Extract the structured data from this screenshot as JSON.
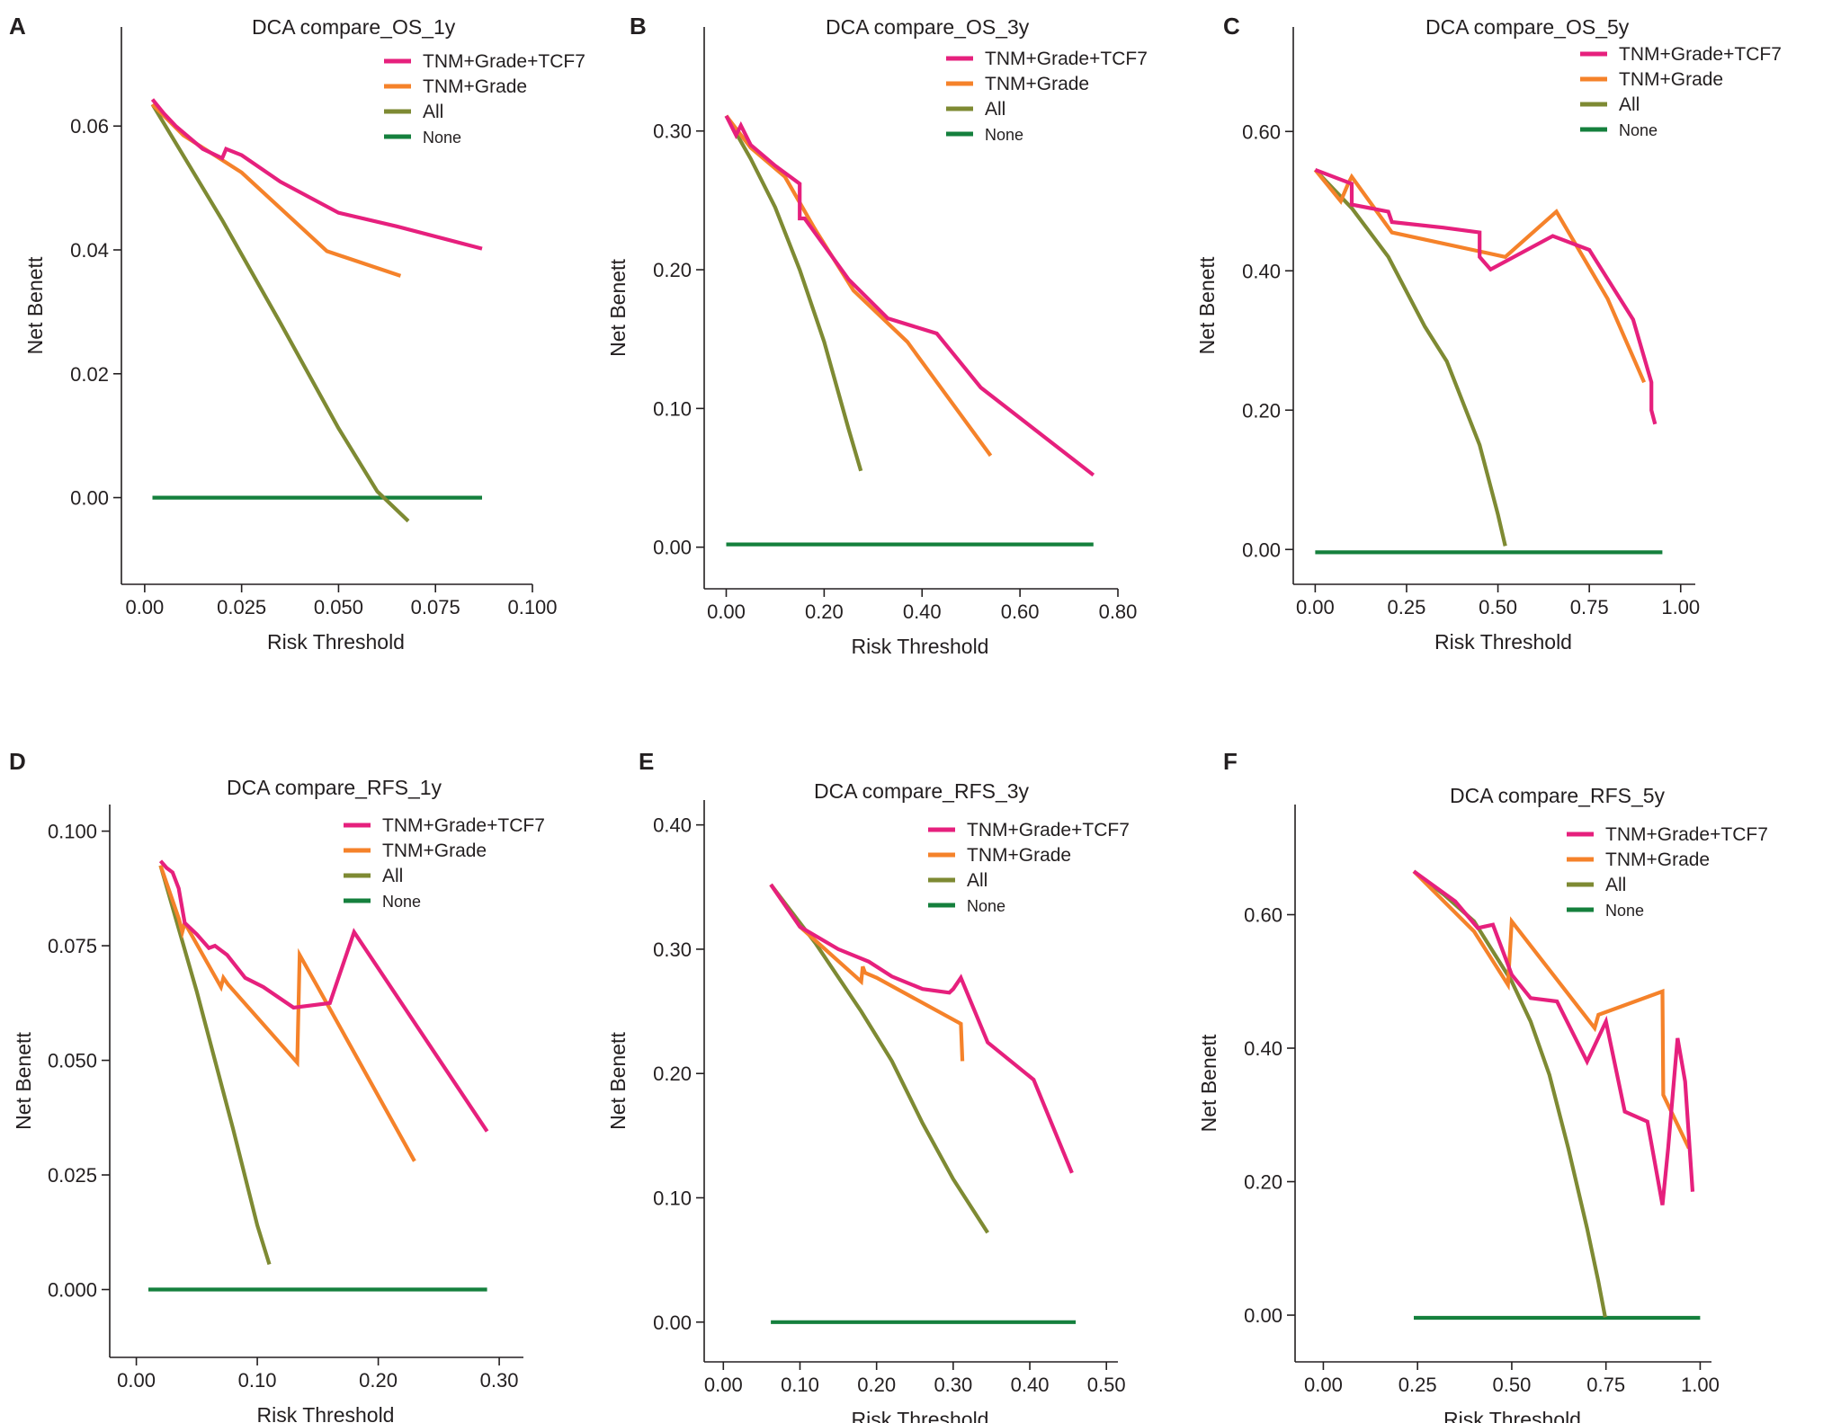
{
  "colors": {
    "TNM+Grade+TCF7": "#e6207d",
    "TNM+Grade": "#f5822a",
    "All": "#7e8a33",
    "None": "#15803d"
  },
  "legend_order": [
    "TNM+Grade+TCF7",
    "TNM+Grade",
    "All",
    "None"
  ],
  "chart_data": [
    {
      "panel": "A",
      "type": "line",
      "title": "DCA compare_OS_1y",
      "xlabel": "Risk Threshold",
      "ylabel": "Net Benett",
      "xlim": [
        -0.006,
        0.1
      ],
      "ylim": [
        -0.014,
        0.076
      ],
      "xticks": [
        0.0,
        0.025,
        0.05,
        0.075,
        0.1
      ],
      "xtick_labels": [
        "0.00",
        "0.025",
        "0.050",
        "0.075",
        "0.100"
      ],
      "yticks": [
        0.0,
        0.02,
        0.04,
        0.06
      ],
      "ytick_labels": [
        "0.00",
        "0.02",
        "0.04",
        "0.06"
      ],
      "series": [
        {
          "name": "TNM+Grade+TCF7",
          "x": [
            0.002,
            0.005,
            0.008,
            0.015,
            0.02,
            0.021,
            0.025,
            0.035,
            0.05,
            0.065,
            0.087
          ],
          "y": [
            0.0643,
            0.062,
            0.06,
            0.0563,
            0.0548,
            0.0563,
            0.0553,
            0.051,
            0.046,
            0.0438,
            0.0402
          ]
        },
        {
          "name": "TNM+Grade",
          "x": [
            0.002,
            0.01,
            0.025,
            0.047,
            0.066
          ],
          "y": [
            0.0635,
            0.0585,
            0.0525,
            0.0398,
            0.0358
          ]
        },
        {
          "name": "All",
          "x": [
            0.002,
            0.01,
            0.02,
            0.035,
            0.05,
            0.06,
            0.068
          ],
          "y": [
            0.0635,
            0.0552,
            0.0448,
            0.0282,
            0.0112,
            0.001,
            -0.0038
          ]
        },
        {
          "name": "None",
          "x": [
            0.002,
            0.087
          ],
          "y": [
            0.0,
            0.0
          ]
        }
      ]
    },
    {
      "panel": "B",
      "type": "line",
      "title": "DCA compare_OS_3y",
      "xlabel": "Risk Threshold",
      "ylabel": "Net Benett",
      "xlim": [
        -0.045,
        0.8
      ],
      "ylim": [
        -0.03,
        0.375
      ],
      "xticks": [
        0.0,
        0.2,
        0.4,
        0.6,
        0.8
      ],
      "xtick_labels": [
        "0.00",
        "0.20",
        "0.40",
        "0.60",
        "0.80"
      ],
      "yticks": [
        0.0,
        0.1,
        0.2,
        0.3
      ],
      "ytick_labels": [
        "0.00",
        "0.10",
        "0.20",
        "0.30"
      ],
      "series": [
        {
          "name": "TNM+Grade+TCF7",
          "x": [
            0.0,
            0.02,
            0.03,
            0.05,
            0.1,
            0.15,
            0.15,
            0.16,
            0.25,
            0.33,
            0.43,
            0.52,
            0.75
          ],
          "y": [
            0.311,
            0.297,
            0.304,
            0.29,
            0.275,
            0.262,
            0.237,
            0.237,
            0.193,
            0.165,
            0.154,
            0.115,
            0.052
          ]
        },
        {
          "name": "TNM+Grade",
          "x": [
            0.0,
            0.05,
            0.12,
            0.18,
            0.26,
            0.37,
            0.54
          ],
          "y": [
            0.311,
            0.288,
            0.267,
            0.23,
            0.185,
            0.148,
            0.066
          ]
        },
        {
          "name": "All",
          "x": [
            0.0,
            0.05,
            0.1,
            0.15,
            0.2,
            0.25,
            0.275
          ],
          "y": [
            0.311,
            0.28,
            0.245,
            0.2,
            0.148,
            0.085,
            0.055
          ]
        },
        {
          "name": "None",
          "x": [
            0.0,
            0.75
          ],
          "y": [
            0.002,
            0.002
          ]
        }
      ]
    },
    {
      "panel": "C",
      "type": "line",
      "title": "DCA compare_OS_5y",
      "xlabel": "Risk Threshold",
      "ylabel": "Net Benett",
      "xlim": [
        -0.06,
        1.04
      ],
      "ylim": [
        -0.05,
        0.75
      ],
      "xticks": [
        0.0,
        0.25,
        0.5,
        0.75,
        1.0
      ],
      "xtick_labels": [
        "0.00",
        "0.25",
        "0.50",
        "0.75",
        "1.00"
      ],
      "yticks": [
        0.0,
        0.2,
        0.4,
        0.6
      ],
      "ytick_labels": [
        "0.00",
        "0.20",
        "0.40",
        "0.60"
      ],
      "series": [
        {
          "name": "TNM+Grade+TCF7",
          "x": [
            0.0,
            0.1,
            0.1,
            0.2,
            0.21,
            0.35,
            0.45,
            0.45,
            0.48,
            0.65,
            0.75,
            0.87,
            0.92,
            0.92,
            0.93
          ],
          "y": [
            0.545,
            0.525,
            0.495,
            0.485,
            0.47,
            0.462,
            0.455,
            0.42,
            0.402,
            0.45,
            0.43,
            0.33,
            0.24,
            0.2,
            0.18
          ]
        },
        {
          "name": "TNM+Grade",
          "x": [
            0.0,
            0.07,
            0.09,
            0.1,
            0.21,
            0.52,
            0.66,
            0.8,
            0.9
          ],
          "y": [
            0.545,
            0.5,
            0.525,
            0.535,
            0.455,
            0.42,
            0.485,
            0.36,
            0.24
          ]
        },
        {
          "name": "All",
          "x": [
            0.0,
            0.1,
            0.2,
            0.3,
            0.36,
            0.45,
            0.5,
            0.52
          ],
          "y": [
            0.545,
            0.49,
            0.42,
            0.32,
            0.27,
            0.15,
            0.05,
            0.005
          ]
        },
        {
          "name": "None",
          "x": [
            0.0,
            0.95
          ],
          "y": [
            -0.004,
            -0.004
          ]
        }
      ]
    },
    {
      "panel": "D",
      "type": "line",
      "title": "DCA compare_RFS_1y",
      "xlabel": "Risk Threshold",
      "ylabel": "Net Benett",
      "xlim": [
        -0.022,
        0.32
      ],
      "ylim": [
        -0.0148,
        0.1058
      ],
      "xticks": [
        0.0,
        0.1,
        0.2,
        0.3
      ],
      "xtick_labels": [
        "0.00",
        "0.10",
        "0.20",
        "0.30"
      ],
      "yticks": [
        0.0,
        0.025,
        0.05,
        0.075,
        0.1
      ],
      "ytick_labels": [
        "0.000",
        "0.025",
        "0.050",
        "0.075",
        "0.100"
      ],
      "series": [
        {
          "name": "TNM+Grade+TCF7",
          "x": [
            0.02,
            0.025,
            0.03,
            0.035,
            0.04,
            0.05,
            0.06,
            0.065,
            0.07,
            0.075,
            0.09,
            0.105,
            0.13,
            0.16,
            0.18,
            0.29
          ],
          "y": [
            0.0935,
            0.092,
            0.091,
            0.0875,
            0.08,
            0.0775,
            0.0745,
            0.075,
            0.074,
            0.073,
            0.068,
            0.066,
            0.0615,
            0.0625,
            0.078,
            0.0345
          ]
        },
        {
          "name": "TNM+Grade",
          "x": [
            0.02,
            0.035,
            0.038,
            0.04,
            0.07,
            0.072,
            0.076,
            0.133,
            0.135,
            0.15,
            0.23
          ],
          "y": [
            0.0925,
            0.081,
            0.078,
            0.08,
            0.066,
            0.068,
            0.0665,
            0.0495,
            0.073,
            0.066,
            0.028
          ]
        },
        {
          "name": "All",
          "x": [
            0.02,
            0.05,
            0.08,
            0.1,
            0.11
          ],
          "y": [
            0.0925,
            0.065,
            0.035,
            0.014,
            0.0055
          ]
        },
        {
          "name": "None",
          "x": [
            0.01,
            0.29
          ],
          "y": [
            0.0,
            0.0
          ]
        }
      ]
    },
    {
      "panel": "E",
      "type": "line",
      "title": "DCA compare_RFS_3y",
      "xlabel": "Risk Threshold",
      "ylabel": "Net Benett",
      "xlim": [
        -0.025,
        0.515
      ],
      "ylim": [
        -0.032,
        0.42
      ],
      "xticks": [
        0.0,
        0.1,
        0.2,
        0.3,
        0.4,
        0.5
      ],
      "xtick_labels": [
        "0.00",
        "0.10",
        "0.20",
        "0.30",
        "0.40",
        "0.50"
      ],
      "yticks": [
        0.0,
        0.1,
        0.2,
        0.3,
        0.4
      ],
      "ytick_labels": [
        "0.00",
        "0.10",
        "0.20",
        "0.30",
        "0.40"
      ],
      "series": [
        {
          "name": "TNM+Grade+TCF7",
          "x": [
            0.062,
            0.1,
            0.15,
            0.19,
            0.22,
            0.26,
            0.295,
            0.3,
            0.31,
            0.345,
            0.405,
            0.455
          ],
          "y": [
            0.352,
            0.318,
            0.3,
            0.29,
            0.278,
            0.268,
            0.265,
            0.268,
            0.277,
            0.225,
            0.195,
            0.12
          ]
        },
        {
          "name": "TNM+Grade",
          "x": [
            0.062,
            0.1,
            0.18,
            0.182,
            0.185,
            0.2,
            0.31,
            0.312
          ],
          "y": [
            0.352,
            0.318,
            0.274,
            0.286,
            0.281,
            0.277,
            0.24,
            0.21
          ]
        },
        {
          "name": "All",
          "x": [
            0.062,
            0.12,
            0.18,
            0.22,
            0.26,
            0.3,
            0.345
          ],
          "y": [
            0.352,
            0.305,
            0.25,
            0.21,
            0.16,
            0.115,
            0.072
          ]
        },
        {
          "name": "None",
          "x": [
            0.062,
            0.46
          ],
          "y": [
            0.0,
            0.0
          ]
        }
      ]
    },
    {
      "panel": "F",
      "type": "line",
      "title": "DCA compare_RFS_5y",
      "xlabel": "Risk Threshold",
      "ylabel": "Net Benett",
      "xlim": [
        -0.075,
        1.03
      ],
      "ylim": [
        -0.07,
        0.765
      ],
      "xticks": [
        0.0,
        0.25,
        0.5,
        0.75,
        1.0
      ],
      "xtick_labels": [
        "0.00",
        "0.25",
        "0.50",
        "0.75",
        "1.00"
      ],
      "yticks": [
        0.0,
        0.2,
        0.4,
        0.6
      ],
      "ytick_labels": [
        "0.00",
        "0.20",
        "0.40",
        "0.60"
      ],
      "series": [
        {
          "name": "TNM+Grade+TCF7",
          "x": [
            0.24,
            0.35,
            0.41,
            0.45,
            0.5,
            0.55,
            0.62,
            0.7,
            0.75,
            0.8,
            0.86,
            0.9,
            0.915,
            0.94,
            0.96,
            0.98
          ],
          "y": [
            0.665,
            0.62,
            0.58,
            0.585,
            0.51,
            0.475,
            0.47,
            0.38,
            0.44,
            0.305,
            0.29,
            0.165,
            0.25,
            0.415,
            0.35,
            0.185
          ]
        },
        {
          "name": "TNM+Grade",
          "x": [
            0.24,
            0.4,
            0.49,
            0.5,
            0.72,
            0.73,
            0.9,
            0.902,
            0.97
          ],
          "y": [
            0.665,
            0.575,
            0.495,
            0.59,
            0.43,
            0.45,
            0.485,
            0.33,
            0.25
          ]
        },
        {
          "name": "All",
          "x": [
            0.24,
            0.32,
            0.4,
            0.5,
            0.55,
            0.6,
            0.65,
            0.7,
            0.73,
            0.748
          ],
          "y": [
            0.665,
            0.63,
            0.59,
            0.5,
            0.44,
            0.36,
            0.25,
            0.13,
            0.05,
            -0.003
          ]
        },
        {
          "name": "None",
          "x": [
            0.24,
            1.0
          ],
          "y": [
            -0.004,
            -0.004
          ]
        }
      ]
    }
  ]
}
